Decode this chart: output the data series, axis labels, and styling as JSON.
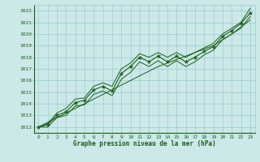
{
  "x": [
    0,
    1,
    2,
    3,
    4,
    5,
    6,
    7,
    8,
    9,
    10,
    11,
    12,
    13,
    14,
    15,
    16,
    17,
    18,
    19,
    20,
    21,
    22,
    23
  ],
  "pressure_main": [
    1012.0,
    1012.2,
    1013.0,
    1013.3,
    1014.1,
    1014.3,
    1015.2,
    1015.5,
    1015.1,
    1016.6,
    1017.2,
    1018.0,
    1017.6,
    1018.1,
    1017.6,
    1018.1,
    1017.6,
    1018.0,
    1018.5,
    1018.9,
    1019.8,
    1020.3,
    1020.9,
    1021.8
  ],
  "pressure_upper": [
    1012.0,
    1012.3,
    1013.2,
    1013.6,
    1014.4,
    1014.5,
    1015.5,
    1015.8,
    1015.5,
    1017.0,
    1017.5,
    1018.3,
    1018.0,
    1018.4,
    1018.0,
    1018.4,
    1018.0,
    1018.4,
    1018.8,
    1019.2,
    1020.0,
    1020.5,
    1021.0,
    1022.2
  ],
  "pressure_lower": [
    1012.0,
    1012.0,
    1012.8,
    1013.0,
    1013.8,
    1013.9,
    1014.8,
    1015.1,
    1014.7,
    1016.1,
    1016.7,
    1017.6,
    1017.2,
    1017.7,
    1017.2,
    1017.7,
    1017.2,
    1017.6,
    1018.2,
    1018.6,
    1019.5,
    1020.0,
    1020.5,
    1021.5
  ],
  "trend_line": [
    1012.0,
    1012.4,
    1012.8,
    1013.2,
    1013.6,
    1014.0,
    1014.4,
    1014.8,
    1015.2,
    1015.6,
    1016.0,
    1016.4,
    1016.8,
    1017.2,
    1017.5,
    1017.8,
    1018.1,
    1018.4,
    1018.7,
    1019.0,
    1019.5,
    1020.0,
    1020.6,
    1021.2
  ],
  "ylim_min": 1011.5,
  "ylim_max": 1022.5,
  "yticks": [
    1012,
    1013,
    1014,
    1015,
    1016,
    1017,
    1018,
    1019,
    1020,
    1021,
    1022
  ],
  "xlabel": "Graphe pression niveau de la mer (hPa)",
  "line_color": "#1a5c1a",
  "bg_color": "#cce8e8",
  "grid_color": "#99cccc",
  "font_color": "#1a5c1a"
}
